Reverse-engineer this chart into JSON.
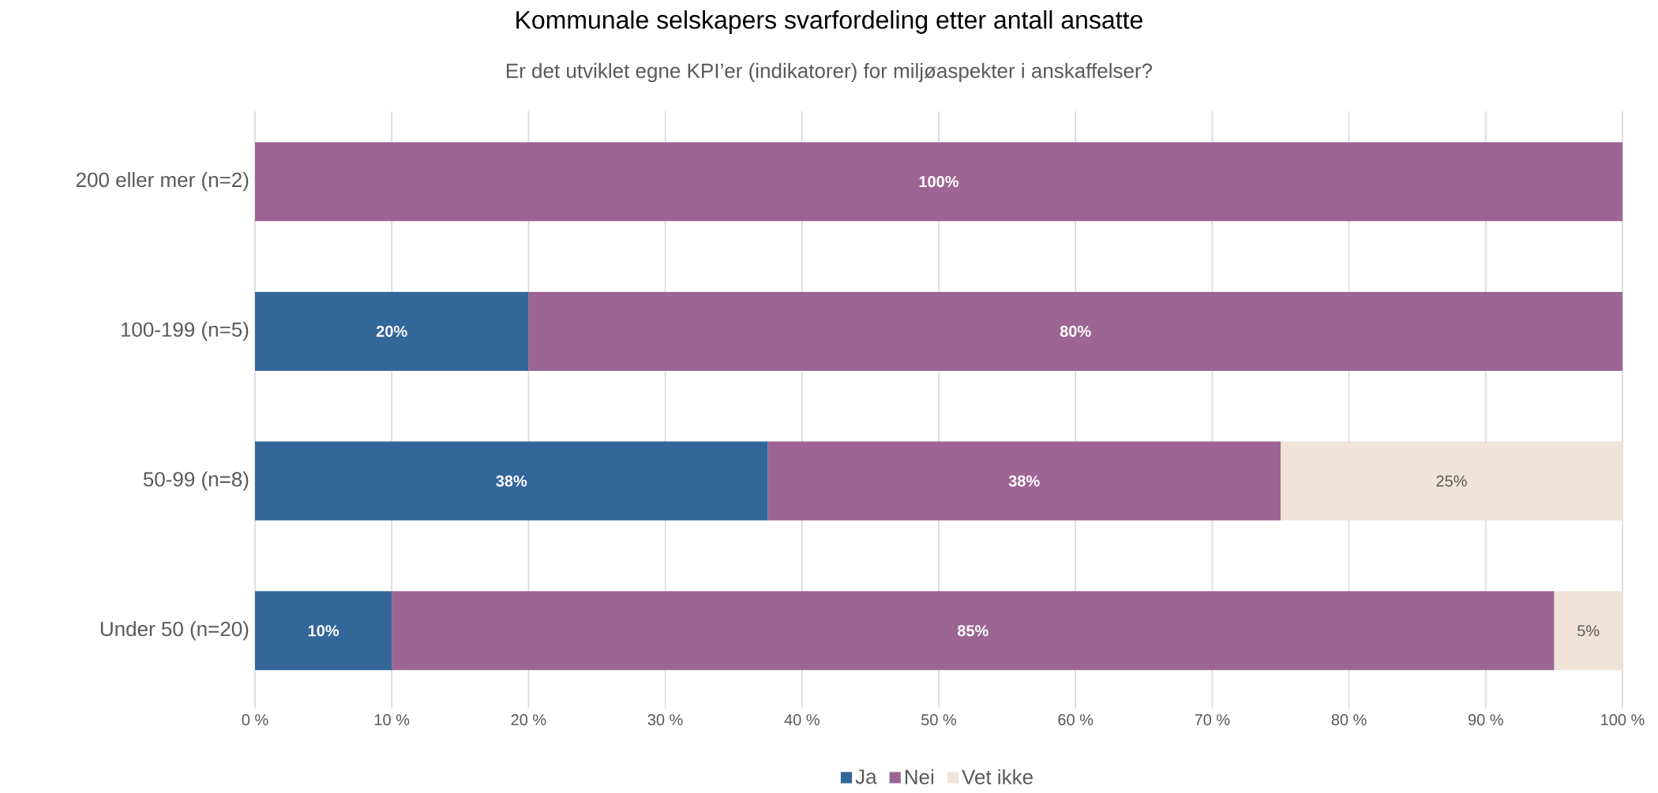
{
  "chart_data": {
    "type": "bar",
    "orientation": "horizontal",
    "stacked": true,
    "title": "Kommunale selskapers svarfordeling etter antall ansatte",
    "subtitle": "Er det utviklet egne KPI’er (indikatorer) for miljøaspekter i anskaffelser?",
    "categories": [
      "200 eller mer (n=2)",
      "100-199 (n=5)",
      "50-99 (n=8)",
      "Under 50 (n=20)"
    ],
    "series": [
      {
        "name": "Ja",
        "color": "#336699",
        "values": [
          0,
          20,
          37.5,
          10
        ],
        "value_labels": [
          null,
          "20%",
          "38%",
          "10%"
        ]
      },
      {
        "name": "Nei",
        "color": "#9c6594",
        "values": [
          100,
          80,
          37.5,
          85
        ],
        "value_labels": [
          "100%",
          "80%",
          "38%",
          "85%"
        ]
      },
      {
        "name": "Vet ikke",
        "color": "#efe4d7",
        "values": [
          0,
          0,
          25,
          5
        ],
        "value_labels": [
          null,
          null,
          "25%",
          "5%"
        ]
      }
    ],
    "xlim": [
      0,
      100
    ],
    "xticks": [
      {
        "value": 0,
        "label": "0 %"
      },
      {
        "value": 10,
        "label": "10 %"
      },
      {
        "value": 20,
        "label": "20 %"
      },
      {
        "value": 30,
        "label": "30 %"
      },
      {
        "value": 40,
        "label": "40 %"
      },
      {
        "value": 50,
        "label": "50 %"
      },
      {
        "value": 60,
        "label": "60 %"
      },
      {
        "value": 70,
        "label": "70 %"
      },
      {
        "value": 80,
        "label": "80 %"
      },
      {
        "value": 90,
        "label": "90 %"
      },
      {
        "value": 100,
        "label": "100 %"
      }
    ],
    "grid": "x",
    "legend": "bottom"
  }
}
